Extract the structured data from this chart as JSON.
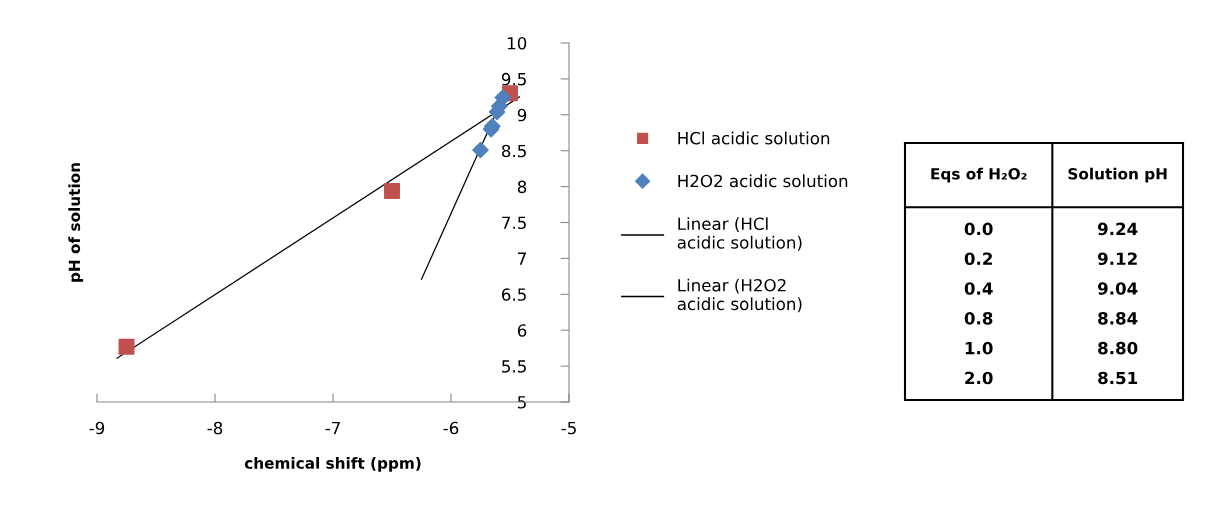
{
  "chart_data": [
    {
      "type": "scatter",
      "xlabel": "chemical shift (ppm)",
      "ylabel": "pH of solution",
      "xlim": [
        -9,
        -5
      ],
      "xticks": [
        -9,
        -8,
        -7,
        -6,
        -5
      ],
      "ylim": [
        5,
        10
      ],
      "yticks": [
        5,
        5.5,
        6,
        6.5,
        7,
        7.5,
        8,
        8.5,
        9,
        9.5,
        10
      ],
      "grid": false,
      "legend": "right",
      "series": [
        {
          "name": "HCl acidic solution",
          "type": "scatter",
          "marker": "square",
          "color": "#c0504d",
          "x": [
            -8.75,
            -6.5,
            -5.5
          ],
          "values": [
            5.77,
            7.94,
            9.3
          ]
        },
        {
          "name": "H2O2 acidic solution",
          "type": "scatter",
          "marker": "diamond",
          "color": "#4f81bd",
          "x": [
            -5.56,
            -5.59,
            -5.61,
            -5.65,
            -5.66,
            -5.75
          ],
          "values": [
            9.24,
            9.12,
            9.04,
            8.84,
            8.8,
            8.51
          ]
        },
        {
          "name": "Linear (HCl acidic solution)",
          "type": "line",
          "color": "#000000",
          "x": [
            -8.83,
            -5.42
          ],
          "values": [
            5.61,
            9.25
          ]
        },
        {
          "name": "Linear (H2O2 acidic solution)",
          "type": "line",
          "color": "#000000",
          "x": [
            -6.25,
            -5.55
          ],
          "values": [
            6.71,
            9.27
          ]
        }
      ]
    },
    {
      "type": "other",
      "annotations": [
        "Eqs of H₂O₂",
        "Solution pH",
        "0.0",
        "9.24",
        "0.2",
        "9.12",
        "0.4",
        "9.04",
        "0.8",
        "8.84",
        "1.0",
        "8.80",
        "2.0",
        "8.51"
      ]
    }
  ]
}
